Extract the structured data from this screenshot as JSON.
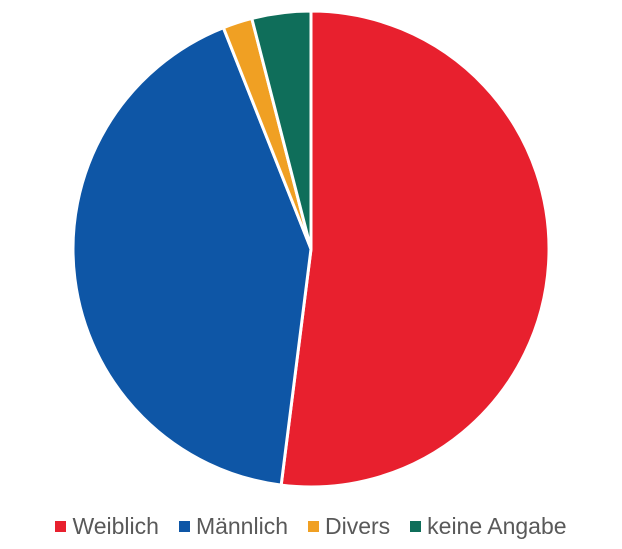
{
  "chart_data": {
    "type": "pie",
    "title": "",
    "categories": [
      "Weiblich",
      "Männlich",
      "Divers",
      "keine Angabe"
    ],
    "values": [
      52,
      42,
      2,
      4
    ],
    "colors": [
      "#e8202e",
      "#0e56a6",
      "#f0a023",
      "#0f6e5a"
    ],
    "legend_position": "bottom",
    "start_angle": "top, clockwise"
  },
  "legend": {
    "items": [
      {
        "label": "Weiblich",
        "color": "#e8202e"
      },
      {
        "label": "Männlich",
        "color": "#0e56a6"
      },
      {
        "label": "Divers",
        "color": "#f0a023"
      },
      {
        "label": "keine Angabe",
        "color": "#0f6e5a"
      }
    ]
  }
}
